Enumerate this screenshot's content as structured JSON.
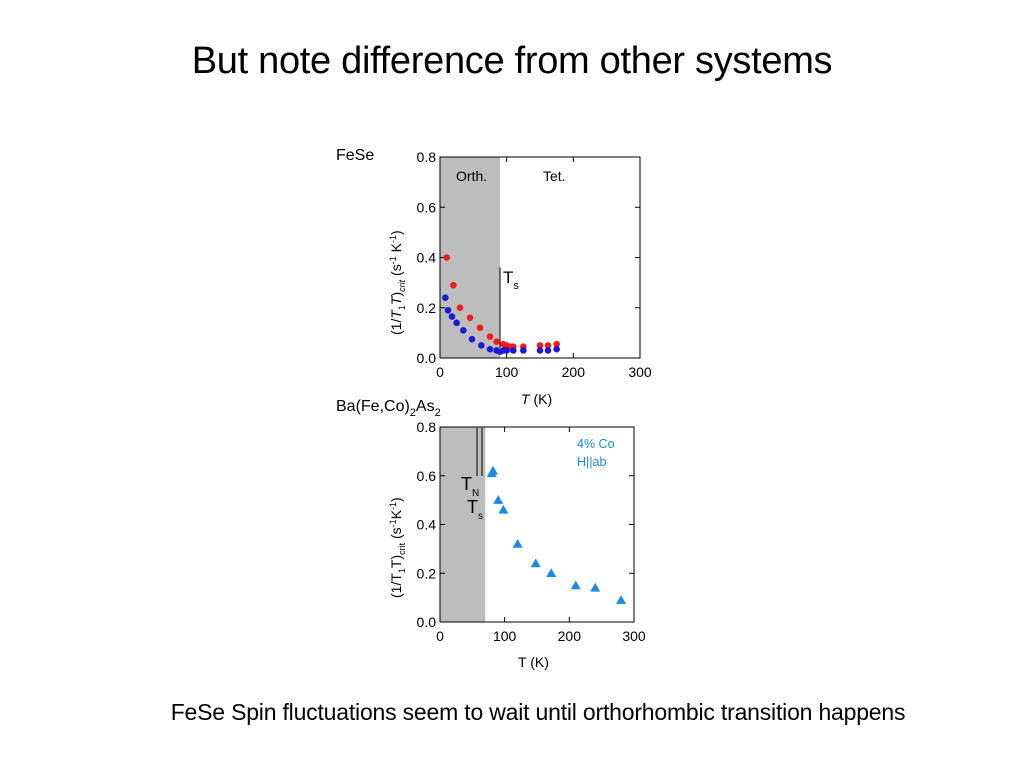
{
  "slide": {
    "title": "But note difference from other systems",
    "caption": "FeSe Spin fluctuations seem to wait until orthorhombic transition happens"
  },
  "chart_data": [
    {
      "type": "scatter",
      "panel_label": "FeSe",
      "xlabel_italic": "T",
      "xlabel_unit": " (K)",
      "ylabel": "(1/T1T)crit (s-1 K-1)",
      "xlim": [
        0,
        300
      ],
      "ylim": [
        0,
        0.8
      ],
      "x_ticks": [
        0,
        100,
        200,
        300
      ],
      "y_ticks": [
        "0.0",
        "0.2",
        "0.4",
        "0.6",
        "0.8"
      ],
      "shaded_region": [
        0,
        90
      ],
      "region_labels": [
        "Orth.",
        "Tet."
      ],
      "marker_label": "Ts",
      "marker_x": 90,
      "series": [
        {
          "color": "#ee1c1c",
          "x": [
            10,
            20,
            30,
            45,
            60,
            75,
            85,
            95,
            100,
            105,
            110,
            125,
            150,
            162,
            175
          ],
          "y": [
            0.4,
            0.29,
            0.2,
            0.16,
            0.12,
            0.085,
            0.065,
            0.055,
            0.05,
            0.045,
            0.045,
            0.045,
            0.05,
            0.05,
            0.055
          ]
        },
        {
          "color": "#1a1ad8",
          "x": [
            8,
            12,
            18,
            25,
            35,
            48,
            62,
            75,
            85,
            90,
            95,
            100,
            110,
            125,
            150,
            162,
            175
          ],
          "y": [
            0.24,
            0.19,
            0.165,
            0.14,
            0.11,
            0.075,
            0.05,
            0.035,
            0.03,
            0.025,
            0.03,
            0.03,
            0.03,
            0.03,
            0.03,
            0.03,
            0.035
          ]
        }
      ]
    },
    {
      "type": "scatter",
      "panel_label": "Ba(Fe,Co)2As2",
      "xlabel": "T (K)",
      "ylabel": "(1/T1T)crit (s-1K-1)",
      "xlim": [
        0,
        300
      ],
      "ylim": [
        0,
        0.8
      ],
      "x_ticks": [
        0,
        100,
        200,
        300
      ],
      "y_ticks": [
        "0.0",
        "0.2",
        "0.4",
        "0.6",
        "0.8"
      ],
      "shaded_region": [
        0,
        70
      ],
      "marker_labels": [
        "TN",
        "Ts"
      ],
      "legend": [
        "4% Co",
        "H||ab"
      ],
      "series": [
        {
          "color": "#1e88e5",
          "marker": "triangle",
          "x": [
            80,
            82,
            90,
            98,
            120,
            148,
            172,
            210,
            240,
            280
          ],
          "y": [
            0.61,
            0.62,
            0.5,
            0.46,
            0.32,
            0.24,
            0.2,
            0.15,
            0.14,
            0.09
          ]
        }
      ]
    }
  ]
}
